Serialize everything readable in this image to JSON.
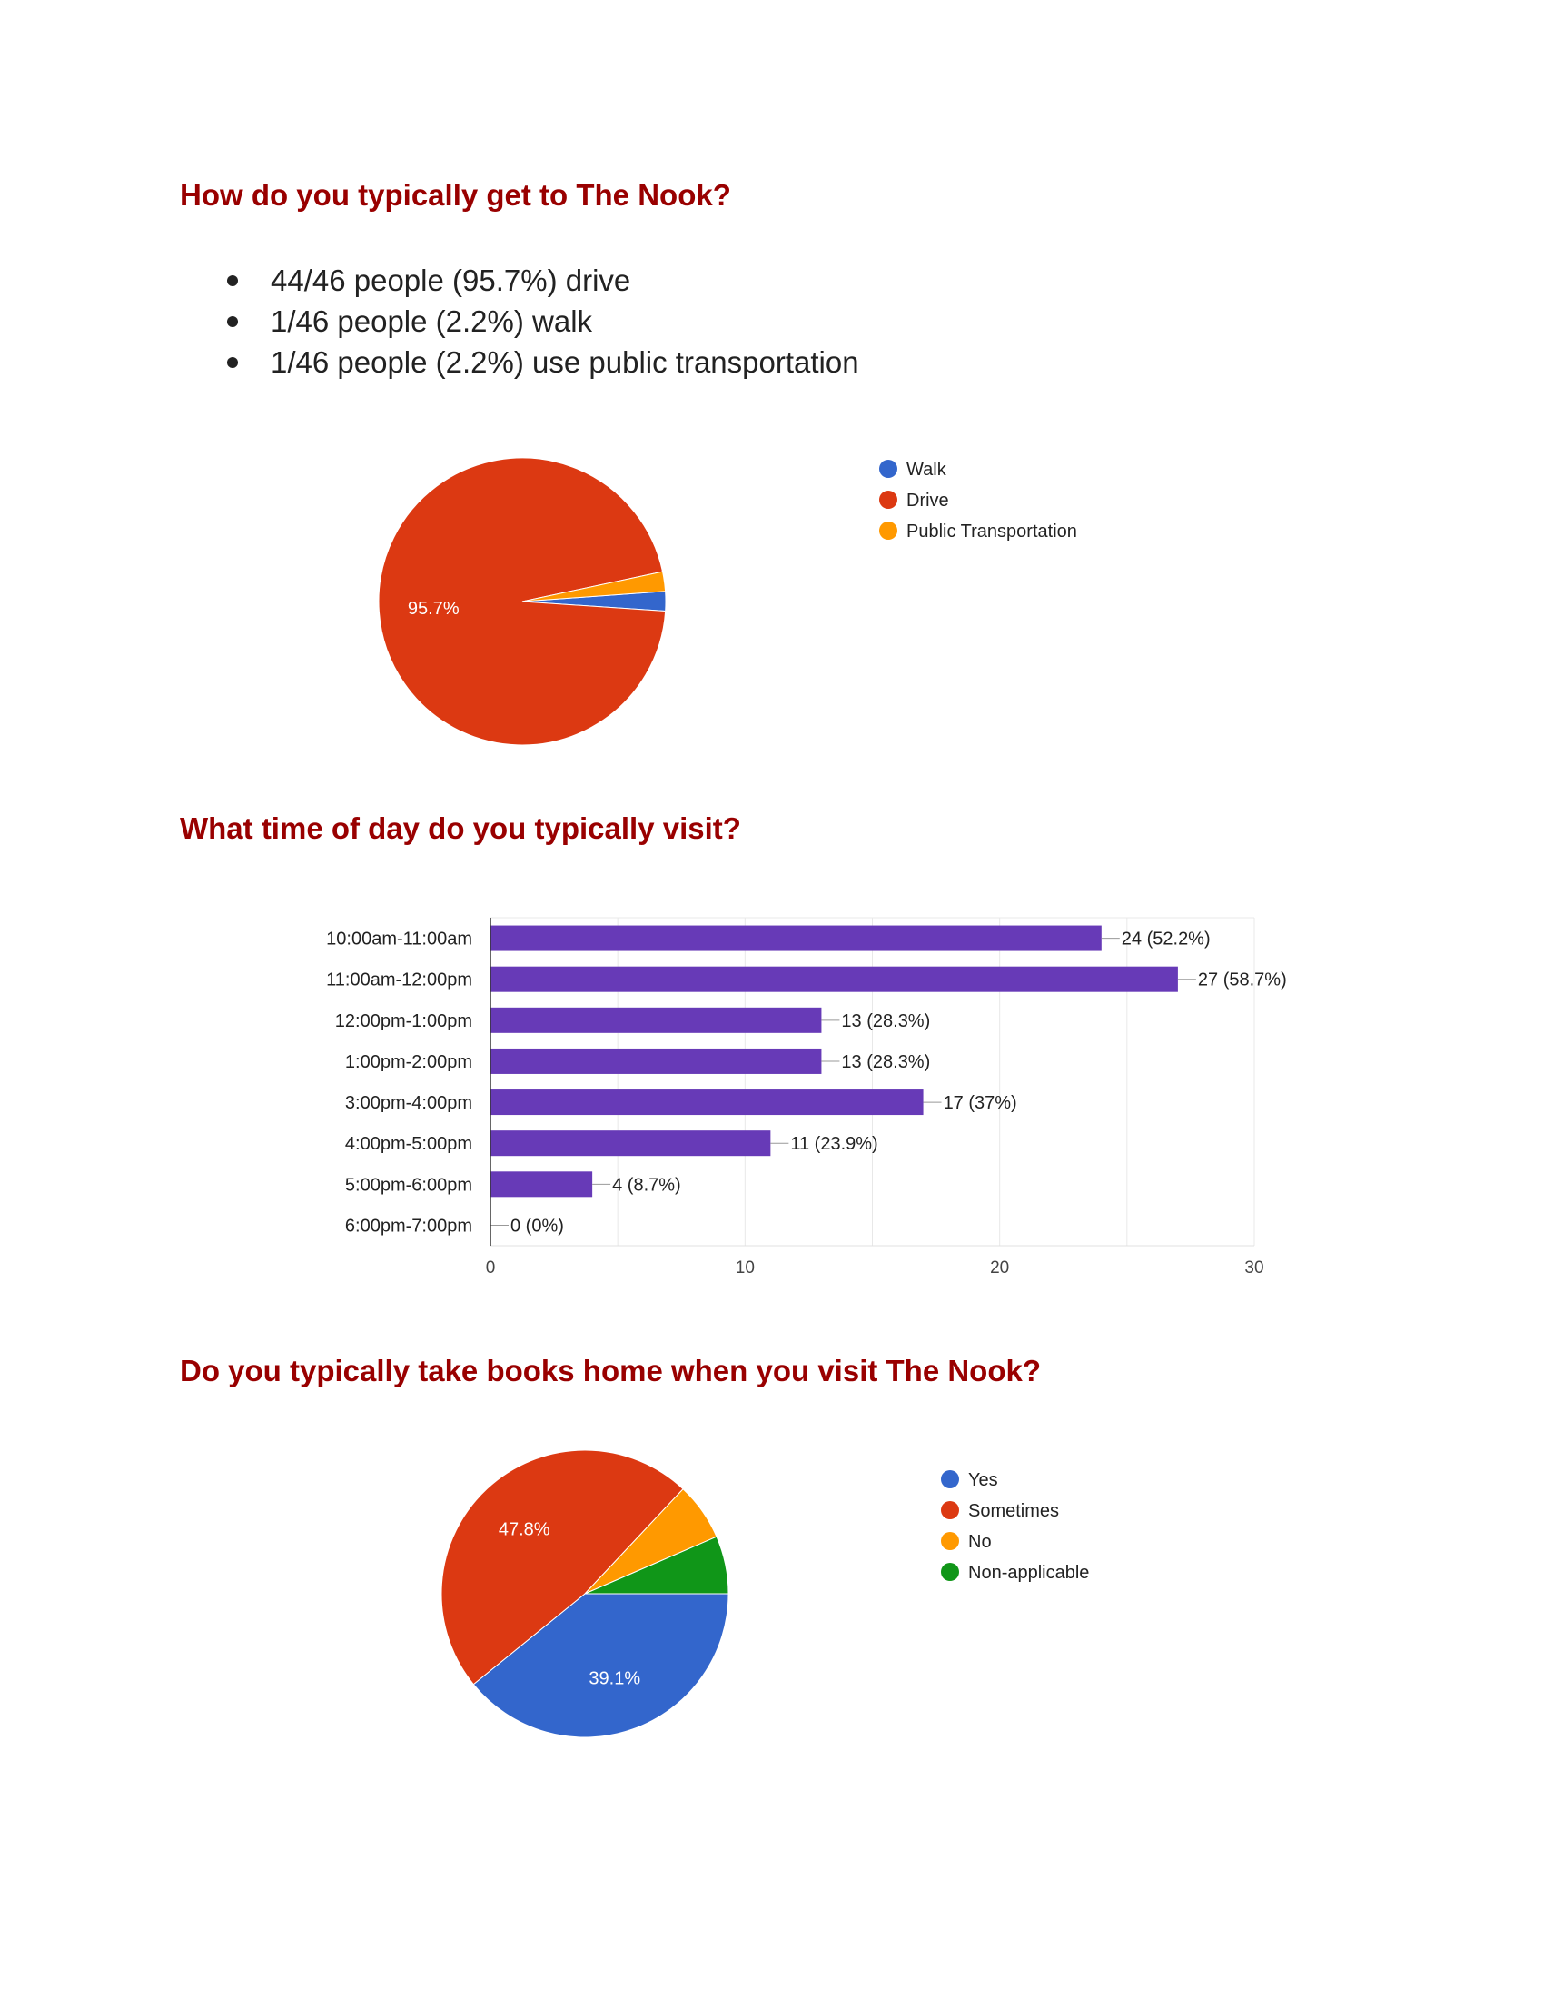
{
  "section1": {
    "title": "How do you typically get to The Nook?",
    "bullets": [
      "44/46 people (95.7%) drive",
      "1/46 people (2.2%) walk",
      "1/46 people (2.2%) use public transportation"
    ]
  },
  "section2": {
    "title": "What time of day do you typically visit?"
  },
  "section3": {
    "title": "Do you typically take books home when you visit The Nook?"
  },
  "chart_data": [
    {
      "type": "pie",
      "title": "",
      "slices": [
        {
          "label": "Walk",
          "value": 1,
          "percent": 2.2,
          "color": "#3366cc"
        },
        {
          "label": "Drive",
          "value": 44,
          "percent": 95.7,
          "color": "#dc3912"
        },
        {
          "label": "Public Transportation",
          "value": 1,
          "percent": 2.2,
          "color": "#ff9900"
        }
      ],
      "visible_labels": {
        "Drive": "95.7%"
      },
      "legend": "right"
    },
    {
      "type": "bar",
      "orientation": "horizontal",
      "title": "",
      "categories": [
        "10:00am-11:00am",
        "11:00am-12:00pm",
        "12:00pm-1:00pm",
        "1:00pm-2:00pm",
        "3:00pm-4:00pm",
        "4:00pm-5:00pm",
        "5:00pm-6:00pm",
        "6:00pm-7:00pm"
      ],
      "values": [
        24,
        27,
        13,
        13,
        17,
        11,
        4,
        0
      ],
      "data_labels": [
        "24 (52.2%)",
        "27 (58.7%)",
        "13 (28.3%)",
        "13 (28.3%)",
        "17 (37%)",
        "11 (23.9%)",
        "4 (8.7%)",
        "0 (0%)"
      ],
      "xlim": [
        0,
        30
      ],
      "xticks": [
        0,
        10,
        20,
        30
      ],
      "grid": true,
      "color": "#673ab7"
    },
    {
      "type": "pie",
      "title": "",
      "slices": [
        {
          "label": "Yes",
          "percent": 39.1,
          "color": "#3366cc"
        },
        {
          "label": "Sometimes",
          "percent": 47.8,
          "color": "#dc3912"
        },
        {
          "label": "No",
          "percent": 6.5,
          "color": "#ff9900"
        },
        {
          "label": "Non-applicable",
          "percent": 6.5,
          "color": "#109618"
        }
      ],
      "visible_labels": {
        "Yes": "39.1%",
        "Sometimes": "47.8%"
      },
      "legend": "right"
    }
  ]
}
